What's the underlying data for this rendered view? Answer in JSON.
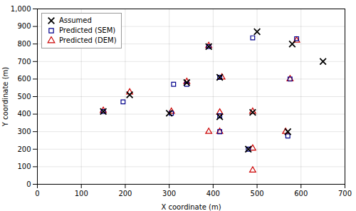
{
  "chart_data": {
    "type": "scatter",
    "xlabel": "X coordinate (m)",
    "ylabel": "Y coordinate (m)",
    "xlim": [
      0,
      700
    ],
    "ylim": [
      0,
      1000
    ],
    "xticks": [
      0,
      100,
      200,
      300,
      400,
      500,
      600,
      700
    ],
    "yticks": [
      0,
      100,
      200,
      300,
      400,
      500,
      600,
      700,
      800,
      900,
      1000
    ],
    "grid": true,
    "legend": "upper left",
    "series": [
      {
        "name": "Assumed",
        "color": "#000000",
        "marker": "x",
        "x": [
          150,
          210,
          300,
          340,
          390,
          415,
          415,
          480,
          490,
          500,
          570,
          580,
          650
        ],
        "values": [
          415,
          510,
          405,
          580,
          785,
          385,
          610,
          200,
          410,
          870,
          300,
          800,
          700
        ]
      },
      {
        "name": "Predicted (SEM)",
        "color": "#00008B",
        "marker": "square",
        "x": [
          150,
          195,
          305,
          310,
          340,
          390,
          415,
          415,
          415,
          480,
          490,
          570,
          575,
          590
        ],
        "values": [
          415,
          470,
          405,
          570,
          570,
          785,
          300,
          390,
          610,
          200,
          835,
          275,
          600,
          830
        ]
      },
      {
        "name": "Predicted (DEM)",
        "color": "#CC0000",
        "marker": "triangle",
        "x": [
          150,
          210,
          305,
          340,
          390,
          390,
          415,
          415,
          420,
          490,
          490,
          490,
          565,
          575,
          590
        ],
        "values": [
          420,
          525,
          415,
          585,
          300,
          790,
          300,
          410,
          610,
          205,
          415,
          80,
          300,
          600,
          820
        ]
      }
    ]
  }
}
